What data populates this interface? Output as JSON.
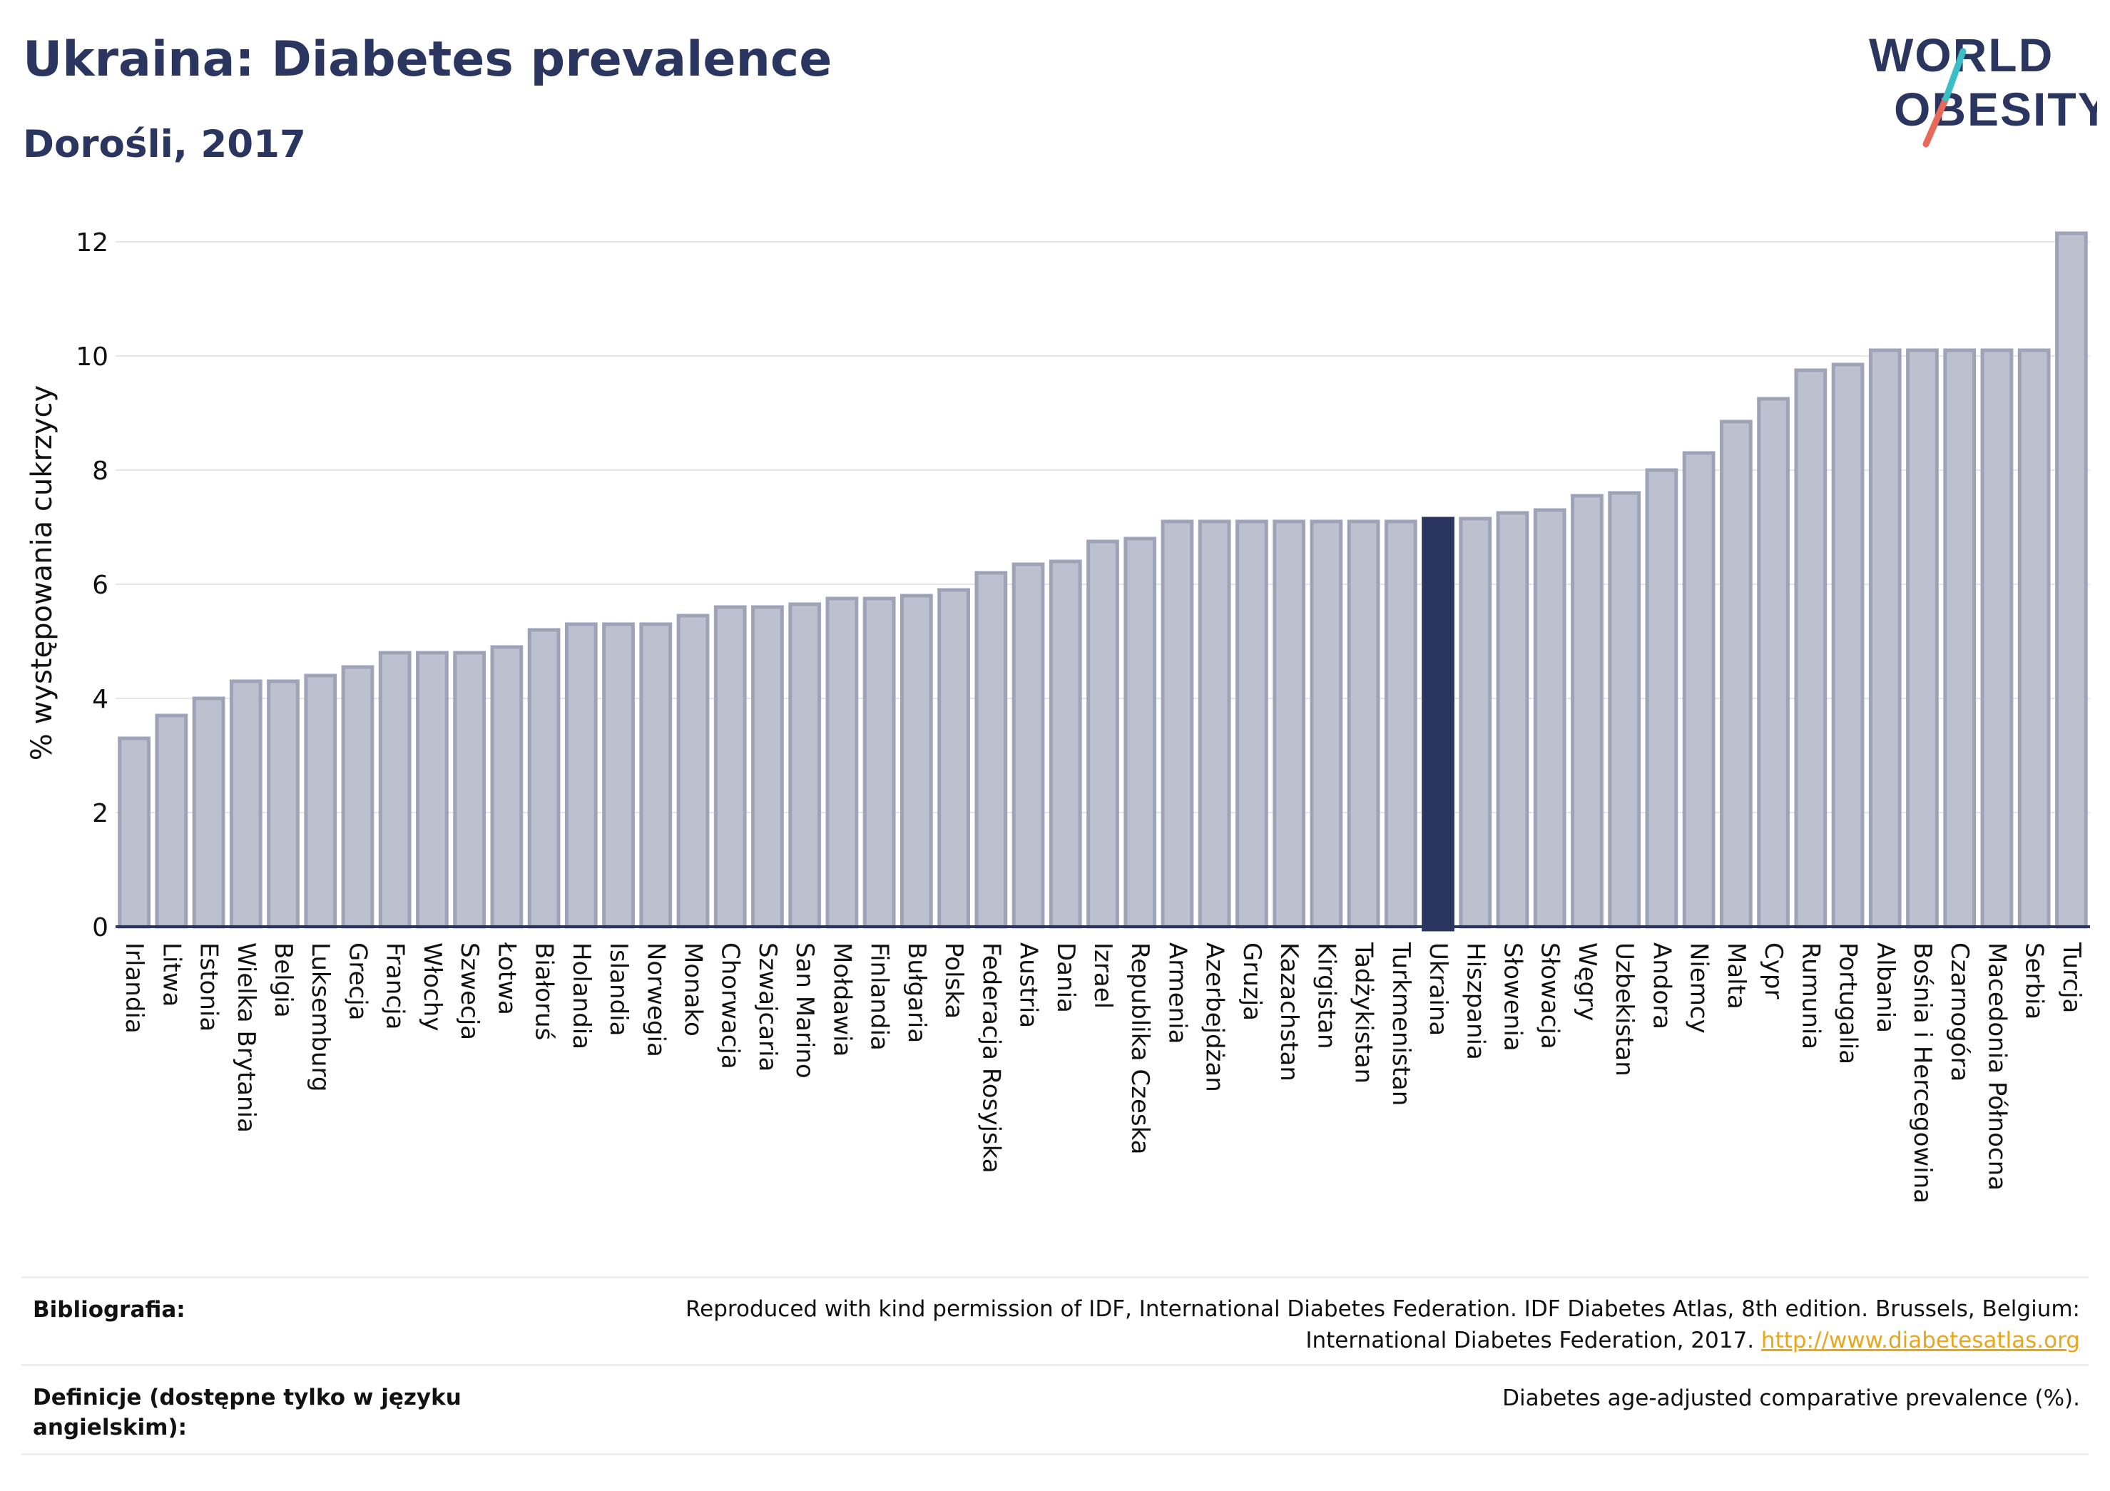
{
  "header": {
    "title": "Ukraina: Diabetes prevalence",
    "subtitle": "Dorośli, 2017"
  },
  "logo": {
    "line1": "WORLD",
    "line2": "OBESITY",
    "colors": {
      "text": "#2a3560",
      "slash_top": "#3bbfc4",
      "slash_bottom": "#e8685a"
    }
  },
  "chart_data": {
    "type": "bar",
    "ylabel": "% występowania cukrzycy",
    "xlabel": "",
    "ylim": [
      0,
      12.3
    ],
    "yticks": [
      0,
      2,
      4,
      6,
      8,
      10,
      12
    ],
    "grid": true,
    "highlight": "Ukraina",
    "colors": {
      "bar": "#bcc0cf",
      "bar_edge": "#9ea3b8",
      "highlight": "#2a3560",
      "grid": "#e6e6e6",
      "axis": "#2a3560"
    },
    "categories": [
      "Irlandia",
      "Litwa",
      "Estonia",
      "Wielka Brytania",
      "Belgia",
      "Luksemburg",
      "Grecja",
      "Francja",
      "Włochy",
      "Szwecja",
      "Łotwa",
      "Białoruś",
      "Holandia",
      "Islandia",
      "Norwegia",
      "Monako",
      "Chorwacja",
      "Szwajcaria",
      "San Marino",
      "Mołdawia",
      "Finlandia",
      "Bułgaria",
      "Polska",
      "Federacja Rosyjska",
      "Austria",
      "Dania",
      "Izrael",
      "Republika Czeska",
      "Armenia",
      "Azerbejdżan",
      "Gruzja",
      "Kazachstan",
      "Kirgistan",
      "Tadżykistan",
      "Turkmenistan",
      "Ukraina",
      "Hiszpania",
      "Słowenia",
      "Słowacja",
      "Węgry",
      "Uzbekistan",
      "Andora",
      "Niemcy",
      "Malta",
      "Cypr",
      "Rumunia",
      "Portugalia",
      "Albania",
      "Bośnia i Hercegowina",
      "Czarnogóra",
      "Macedonia Północna",
      "Serbia",
      "Turcja"
    ],
    "values": [
      3.3,
      3.7,
      4.0,
      4.3,
      4.3,
      4.4,
      4.55,
      4.8,
      4.8,
      4.8,
      4.9,
      5.2,
      5.3,
      5.3,
      5.3,
      5.45,
      5.6,
      5.6,
      5.65,
      5.75,
      5.75,
      5.8,
      5.9,
      6.2,
      6.35,
      6.4,
      6.75,
      6.8,
      7.1,
      7.1,
      7.1,
      7.1,
      7.1,
      7.1,
      7.1,
      7.15,
      7.15,
      7.25,
      7.3,
      7.55,
      7.6,
      8.0,
      8.3,
      8.85,
      9.25,
      9.75,
      9.85,
      10.1,
      10.1,
      10.1,
      10.1,
      10.1,
      12.15
    ]
  },
  "footer": {
    "bibliography_label": "Bibliografia:",
    "bibliography_line1": "Reproduced with kind permission of IDF, International Diabetes Federation. IDF Diabetes Atlas, 8th edition. Brussels, Belgium:",
    "bibliography_line2": "International Diabetes Federation, 2017.",
    "bibliography_link": "http://www.diabetesatlas.org",
    "definitions_label_line1": "Definicje (dostępne tylko w języku",
    "definitions_label_line2": "angielskim):",
    "definitions_text": "Diabetes age-adjusted comparative prevalence (%)."
  }
}
